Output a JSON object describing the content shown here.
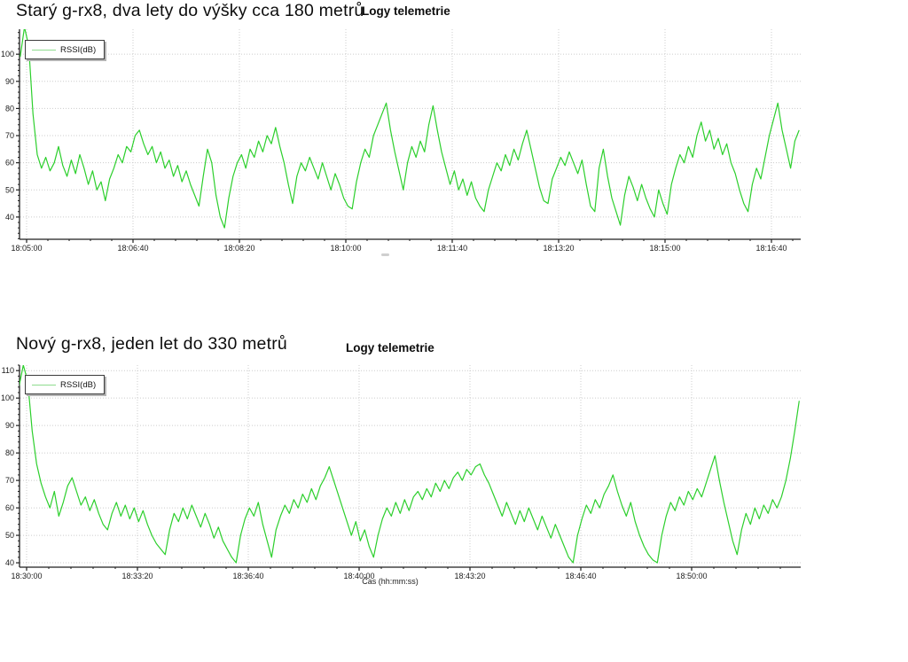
{
  "colors": {
    "series": "#2ccf2c",
    "legend_sample": "#8fdc8f",
    "grid": "#cccccc",
    "axis": "#1f1f1f",
    "background": "#ffffff"
  },
  "chart_data": [
    {
      "type": "line",
      "title": "Starý g-rx8, dva lety do výšky cca 180 metrů",
      "subtitle": "Logy telemetrie",
      "legend": "RSSI(dB)",
      "xlabel": "",
      "legend_position": "top-left",
      "grid": true,
      "x_tick_labels": [
        "18:05:00",
        "18:06:40",
        "18:08:20",
        "18:10:00",
        "18:11:40",
        "18:13:20",
        "18:15:00",
        "18:16:40"
      ],
      "x_tick_interval_s": 100,
      "y_ticks": [
        40,
        50,
        60,
        70,
        80,
        90,
        100
      ],
      "ylim": [
        31.8,
        109.2
      ],
      "t_start": -6,
      "dt": 4,
      "values": [
        99,
        110,
        103,
        78,
        63,
        58,
        62,
        57,
        60,
        66,
        59,
        55,
        61,
        56,
        63,
        58,
        52,
        57,
        50,
        53,
        46,
        54,
        58,
        63,
        60,
        66,
        64,
        70,
        72,
        67,
        63,
        66,
        60,
        64,
        58,
        61,
        55,
        59,
        53,
        57,
        52,
        48,
        44,
        55,
        65,
        60,
        48,
        40,
        36,
        47,
        55,
        60,
        63,
        58,
        65,
        62,
        68,
        64,
        70,
        67,
        73,
        66,
        60,
        52,
        45,
        55,
        60,
        57,
        62,
        58,
        54,
        60,
        55,
        50,
        56,
        52,
        47,
        44,
        43,
        53,
        60,
        65,
        62,
        70,
        74,
        78,
        82,
        72,
        64,
        57,
        50,
        60,
        66,
        62,
        68,
        64,
        74,
        81,
        72,
        64,
        58,
        52,
        57,
        50,
        54,
        48,
        53,
        47,
        44,
        42,
        50,
        55,
        60,
        57,
        63,
        59,
        65,
        61,
        67,
        72,
        65,
        58,
        51,
        46,
        45,
        54,
        58,
        62,
        59,
        64,
        60,
        56,
        61,
        52,
        44,
        42,
        58,
        65,
        55,
        47,
        42,
        37,
        48,
        55,
        51,
        46,
        52,
        47,
        43,
        40,
        50,
        45,
        41,
        52,
        58,
        63,
        60,
        66,
        62,
        70,
        75,
        68,
        72,
        65,
        69,
        63,
        67,
        60,
        56,
        50,
        45,
        42,
        52,
        58,
        54,
        62,
        70,
        76,
        82,
        72,
        65,
        58,
        68,
        72
      ]
    },
    {
      "type": "line",
      "title": "Nový g-rx8, jeden let do 330 metrů",
      "subtitle": "Logy telemetrie",
      "legend": "RSSI(dB)",
      "xlabel": "Čas (hh:mm:ss)",
      "legend_position": "top-left",
      "grid": true,
      "x_tick_labels": [
        "18:30:00",
        "18:33:20",
        "18:36:40",
        "18:40:00",
        "18:43:20",
        "18:46:40",
        "18:50:00"
      ],
      "x_tick_interval_s": 200,
      "y_ticks": [
        40,
        50,
        60,
        70,
        80,
        90,
        100,
        110
      ],
      "ylim": [
        38.4,
        112.0
      ],
      "t_start": -14,
      "dt": 8,
      "values": [
        104,
        112,
        106,
        88,
        76,
        69,
        64,
        60,
        66,
        57,
        62,
        68,
        71,
        66,
        61,
        64,
        59,
        63,
        58,
        54,
        52,
        58,
        62,
        57,
        61,
        56,
        60,
        55,
        59,
        54,
        50,
        47,
        45,
        43,
        52,
        58,
        55,
        60,
        56,
        61,
        57,
        53,
        58,
        54,
        49,
        53,
        48,
        45,
        42,
        40,
        50,
        56,
        60,
        57,
        62,
        54,
        48,
        42,
        52,
        57,
        61,
        58,
        63,
        60,
        65,
        62,
        67,
        63,
        68,
        71,
        75,
        70,
        65,
        60,
        55,
        50,
        55,
        48,
        52,
        46,
        42,
        50,
        56,
        60,
        57,
        62,
        58,
        63,
        59,
        64,
        66,
        63,
        67,
        64,
        69,
        66,
        70,
        67,
        71,
        73,
        70,
        74,
        72,
        75,
        76,
        72,
        69,
        65,
        61,
        57,
        62,
        58,
        54,
        59,
        55,
        60,
        56,
        52,
        57,
        53,
        49,
        54,
        50,
        46,
        42,
        40,
        50,
        56,
        61,
        58,
        63,
        60,
        65,
        68,
        72,
        66,
        61,
        57,
        62,
        55,
        50,
        46,
        43,
        41,
        40,
        50,
        57,
        62,
        59,
        64,
        61,
        66,
        63,
        67,
        64,
        69,
        74,
        79,
        70,
        62,
        55,
        48,
        43,
        52,
        58,
        54,
        60,
        56,
        61,
        58,
        63,
        60,
        64,
        70,
        78,
        88,
        99
      ]
    }
  ]
}
